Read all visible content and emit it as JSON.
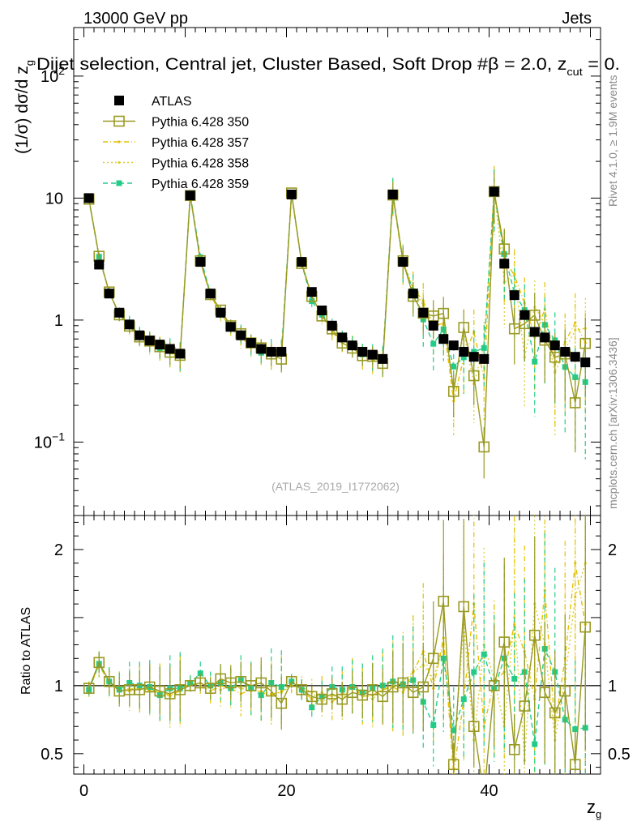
{
  "header": {
    "energy_label": "13000 GeV pp",
    "process_label": "Jets",
    "plot_title": "Dijet selection, Central jet, Cluster Based, Soft Drop #β = 2.0, z",
    "plot_title_sub": "cut",
    "plot_title_tail": " = 0.",
    "side_label_rivet": "Rivet 4.1.0, ≥ 1.9M events",
    "side_label_mcplots": "mcplots.cern.ch [arXiv:1306.3436]",
    "analysis_id": "(ATLAS_2019_I1772062)"
  },
  "axes": {
    "main_ylabel": "(1/σ) dσ/d z",
    "main_ylabel_sub": "g",
    "ratio_ylabel": "Ratio to ATLAS",
    "xlabel": "z",
    "xlabel_sub": "g"
  },
  "chart_data": {
    "type": "line",
    "xlim": [
      -1,
      51
    ],
    "main_ylim_log": [
      0.025,
      250
    ],
    "ratio_ylim": [
      0.35,
      2.25
    ],
    "x_ticks": [
      0,
      20,
      40
    ],
    "main_y_ticks": [
      {
        "value": 100,
        "label": "10",
        "sup": "2"
      },
      {
        "value": 10,
        "label": "10",
        "sup": ""
      },
      {
        "value": 1,
        "label": "1",
        "sup": ""
      },
      {
        "value": 0.1,
        "label": "10",
        "sup": "−1"
      }
    ],
    "ratio_y_ticks": [
      {
        "value": 0.5,
        "label": "0.5"
      },
      {
        "value": 1,
        "label": "1"
      },
      {
        "value": 2,
        "label": "2"
      }
    ],
    "x": [
      0.5,
      1.5,
      2.5,
      3.5,
      4.5,
      5.5,
      6.5,
      7.5,
      8.5,
      9.5,
      10.5,
      11.5,
      12.5,
      13.5,
      14.5,
      15.5,
      16.5,
      17.5,
      18.5,
      19.5,
      20.5,
      21.5,
      22.5,
      23.5,
      24.5,
      25.5,
      26.5,
      27.5,
      28.5,
      29.5,
      30.5,
      31.5,
      32.5,
      33.5,
      34.5,
      35.5,
      36.5,
      37.5,
      38.5,
      39.5,
      40.5,
      41.5,
      42.5,
      43.5,
      44.5,
      45.5,
      46.5,
      47.5,
      48.5,
      49.5
    ],
    "reference": {
      "name": "ATLAS",
      "values": [
        10.0,
        2.85,
        1.65,
        1.15,
        0.92,
        0.75,
        0.68,
        0.63,
        0.58,
        0.53,
        10.5,
        3.0,
        1.65,
        1.15,
        0.88,
        0.75,
        0.65,
        0.58,
        0.55,
        0.55,
        10.7,
        3.0,
        1.7,
        1.2,
        0.9,
        0.72,
        0.62,
        0.55,
        0.52,
        0.48,
        10.7,
        3.0,
        1.65,
        1.15,
        0.9,
        0.7,
        0.62,
        0.55,
        0.5,
        0.48,
        11.3,
        2.9,
        1.6,
        1.1,
        0.8,
        0.72,
        0.62,
        0.55,
        0.5,
        0.45
      ]
    },
    "series": [
      {
        "name": "Pythia 6.428 350",
        "color": "#999922",
        "dash": "",
        "marker": "open-square",
        "ratio": [
          0.98,
          1.17,
          1.03,
          0.96,
          0.97,
          0.97,
          0.99,
          0.96,
          0.94,
          0.97,
          1.0,
          1.02,
          0.98,
          1.05,
          1.02,
          1.03,
          1.0,
          1.02,
          0.96,
          0.87,
          1.03,
          0.97,
          0.92,
          0.9,
          0.94,
          0.9,
          0.95,
          0.93,
          0.97,
          0.92,
          0.99,
          1.02,
          0.95,
          0.99,
          1.2,
          1.62,
          0.42,
          1.58,
          0.7,
          0.19,
          1.0,
          1.32,
          0.53,
          0.85,
          1.37,
          0.95,
          0.8,
          0.96,
          0.42,
          1.43
        ]
      },
      {
        "name": "Pythia 6.428 357",
        "color": "#e5c000",
        "dash": "6,3,1,3",
        "marker": "small-dot",
        "ratio": [
          0.97,
          1.15,
          1.02,
          0.98,
          0.96,
          0.98,
          0.97,
          0.95,
          0.93,
          0.96,
          1.02,
          1.0,
          0.96,
          1.0,
          0.98,
          0.94,
          0.97,
          0.95,
          0.93,
          0.96,
          1.0,
          0.97,
          0.9,
          0.95,
          0.88,
          0.94,
          1.0,
          0.92,
          0.93,
          0.97,
          0.99,
          0.95,
          1.1,
          1.25,
          0.98,
          1.35,
          0.35,
          0.9,
          1.6,
          0.7,
          1.03,
          1.1,
          1.45,
          1.25,
          0.9,
          1.7,
          0.7,
          1.2,
          1.9,
          1.45
        ]
      },
      {
        "name": "Pythia 6.428 358",
        "color": "#ddcc33",
        "dash": "2,3",
        "marker": "small-dot",
        "ratio": [
          0.98,
          1.16,
          1.01,
          0.97,
          0.98,
          0.97,
          0.96,
          0.95,
          0.92,
          0.97,
          1.0,
          1.02,
          0.99,
          0.97,
          1.0,
          0.98,
          0.96,
          0.96,
          0.94,
          0.95,
          1.0,
          0.99,
          0.95,
          0.88,
          0.93,
          0.9,
          1.0,
          0.95,
          0.9,
          0.98,
          1.0,
          1.03,
          1.1,
          1.15,
          1.05,
          1.3,
          0.45,
          1.45,
          0.6,
          1.3,
          1.05,
          0.7,
          1.5,
          0.45,
          1.6,
          1.3,
          0.6,
          1.05,
          1.65,
          1.9
        ]
      },
      {
        "name": "Pythia 6.428 359",
        "color": "#22cc88",
        "dash": "6,4",
        "marker": "filled-square",
        "ratio": [
          0.97,
          1.16,
          1.03,
          0.97,
          1.02,
          1.0,
          0.99,
          0.93,
          0.98,
          0.98,
          1.02,
          1.09,
          1.0,
          1.02,
          0.98,
          1.04,
          0.98,
          0.93,
          1.02,
          0.99,
          1.03,
          0.97,
          0.84,
          0.92,
          0.99,
          0.97,
          0.99,
          0.95,
          0.98,
          1.0,
          1.03,
          1.01,
          1.04,
          0.88,
          0.71,
          1.2,
          0.67,
          0.9,
          1.1,
          1.23,
          0.98,
          1.2,
          1.05,
          1.1,
          0.57,
          1.27,
          1.1,
          0.75,
          0.68,
          0.69
        ]
      }
    ]
  }
}
